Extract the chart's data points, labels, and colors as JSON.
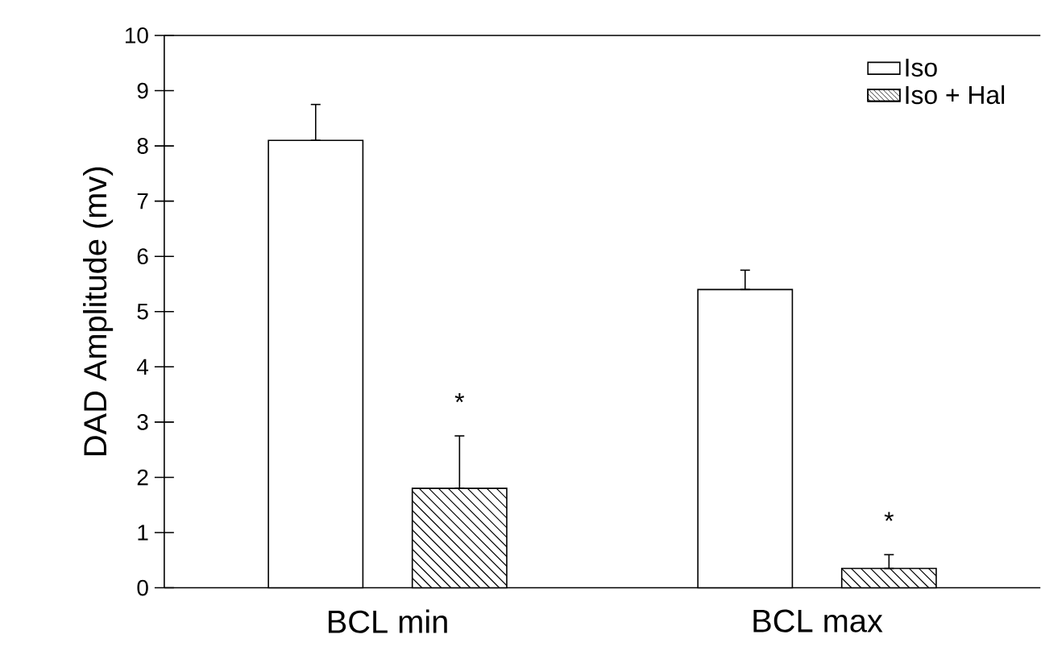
{
  "chart_data": {
    "type": "bar",
    "ylabel": "DAD Amplitude (mv)",
    "categories": [
      "BCL min",
      "BCL max"
    ],
    "series": [
      {
        "name": "Iso",
        "color": "#ffffff",
        "values": [
          8.1,
          5.4
        ],
        "errors": [
          [
            8.1,
            8.75
          ],
          [
            5.4,
            5.75
          ]
        ]
      },
      {
        "name": "Iso + Hal",
        "color": "#000000",
        "values": [
          1.8,
          0.35
        ],
        "errors": [
          [
            1.8,
            2.75
          ],
          [
            0.35,
            0.6
          ]
        ]
      }
    ],
    "ylim": [
      0,
      10
    ],
    "yticks": [
      0,
      1,
      2,
      3,
      4,
      5,
      6,
      7,
      8,
      9,
      10
    ],
    "legend": "top right",
    "grid": false,
    "annotations": [
      "*",
      "*"
    ]
  }
}
